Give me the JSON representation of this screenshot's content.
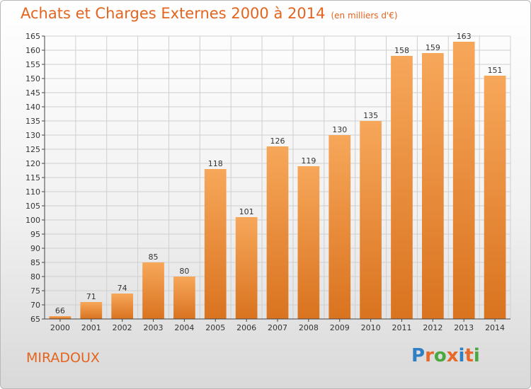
{
  "chart_data": {
    "type": "bar",
    "title": "Achats et Charges Externes 2000 à 2014",
    "subtitle": "(en milliers d'€)",
    "categories": [
      "2000",
      "2001",
      "2002",
      "2003",
      "2004",
      "2005",
      "2006",
      "2007",
      "2008",
      "2009",
      "2010",
      "2011",
      "2012",
      "2013",
      "2014"
    ],
    "values": [
      66,
      71,
      74,
      85,
      80,
      118,
      101,
      126,
      119,
      130,
      135,
      158,
      159,
      163,
      151
    ],
    "ylim": [
      65,
      165
    ],
    "yticks": [
      65,
      70,
      75,
      80,
      85,
      90,
      95,
      100,
      105,
      110,
      115,
      120,
      125,
      130,
      135,
      140,
      145,
      150,
      155,
      160,
      165
    ],
    "grid": true,
    "colors": {
      "bar_light": "#f7a75a",
      "bar_dark": "#d9731f",
      "grid": "#cfcfcf",
      "axis": "#444444",
      "text": "#333333"
    }
  },
  "footer": {
    "town": "MIRADOUX",
    "brand_letters": [
      "P",
      "r",
      "o",
      "x",
      "i",
      "t",
      "i"
    ],
    "brand_colors": [
      "#2e7fc3",
      "#e8682a",
      "#4aa83f",
      "#e8682a",
      "#2e7fc3",
      "#e8682a",
      "#4aa83f"
    ]
  }
}
